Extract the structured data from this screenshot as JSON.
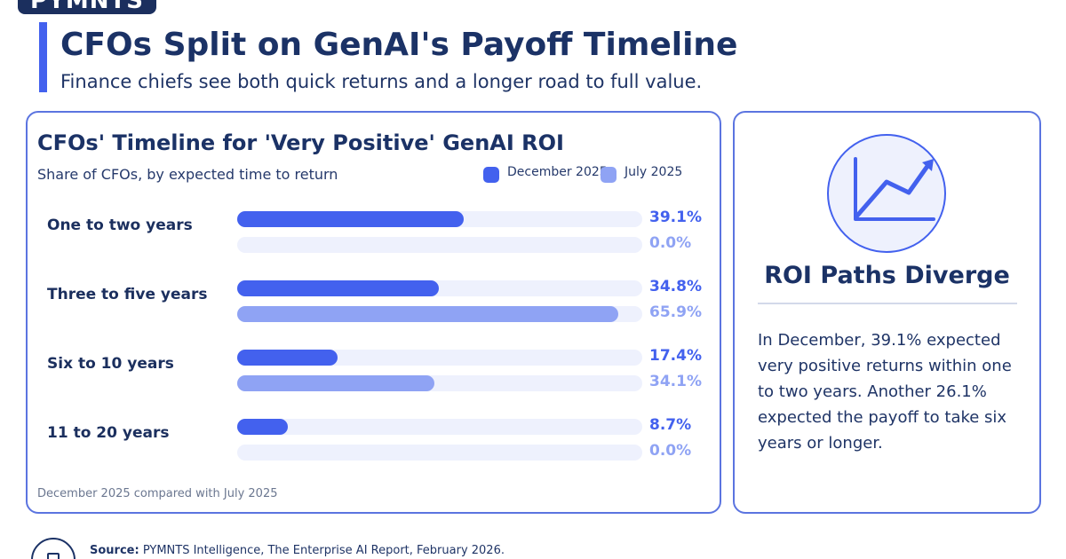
{
  "brand": {
    "logo_text": "PYMNTS"
  },
  "header": {
    "title": "CFOs Split on GenAI's Payoff Timeline",
    "subtitle": "Finance chiefs see both quick returns and a longer road to full value."
  },
  "chart_data": {
    "type": "bar",
    "orientation": "horizontal",
    "title": "CFOs' Timeline for 'Very Positive' GenAI ROI",
    "subtitle": "Share of CFOs, by expected time to return",
    "categories": [
      "One to two years",
      "Three to five years",
      "Six to 10 years",
      "11 to 20 years"
    ],
    "series": [
      {
        "name": "December 2025",
        "values": [
          39.1,
          34.8,
          17.4,
          8.7
        ],
        "labels": [
          "39.1%",
          "34.8%",
          "17.4%",
          "8.7%"
        ],
        "color": "#4361ee"
      },
      {
        "name": "July 2025",
        "values": [
          0.0,
          65.9,
          34.1,
          0.0
        ],
        "labels": [
          "0.0%",
          "65.9%",
          "34.1%",
          "0.0%"
        ],
        "color": "#8fa3f4"
      }
    ],
    "xlim": [
      0,
      70
    ],
    "legend_position": "top-right",
    "grid": false,
    "footnote": "December 2025 compared with July 2025"
  },
  "side_panel": {
    "icon": "trend-chart-icon",
    "title": "ROI Paths Diverge",
    "text": "In December, 39.1% expected very positive returns within one to two years. Another 26.1% expected the payoff to take six years or longer."
  },
  "source": {
    "icon": "document-icon",
    "label": "Source:",
    "text": "PYMNTS Intelligence, The Enterprise AI Report, February 2026."
  },
  "colors": {
    "accent": "#4361ee",
    "navy": "#1b3266",
    "light_series": "#8fa3f4",
    "track": "#eef1fd"
  }
}
